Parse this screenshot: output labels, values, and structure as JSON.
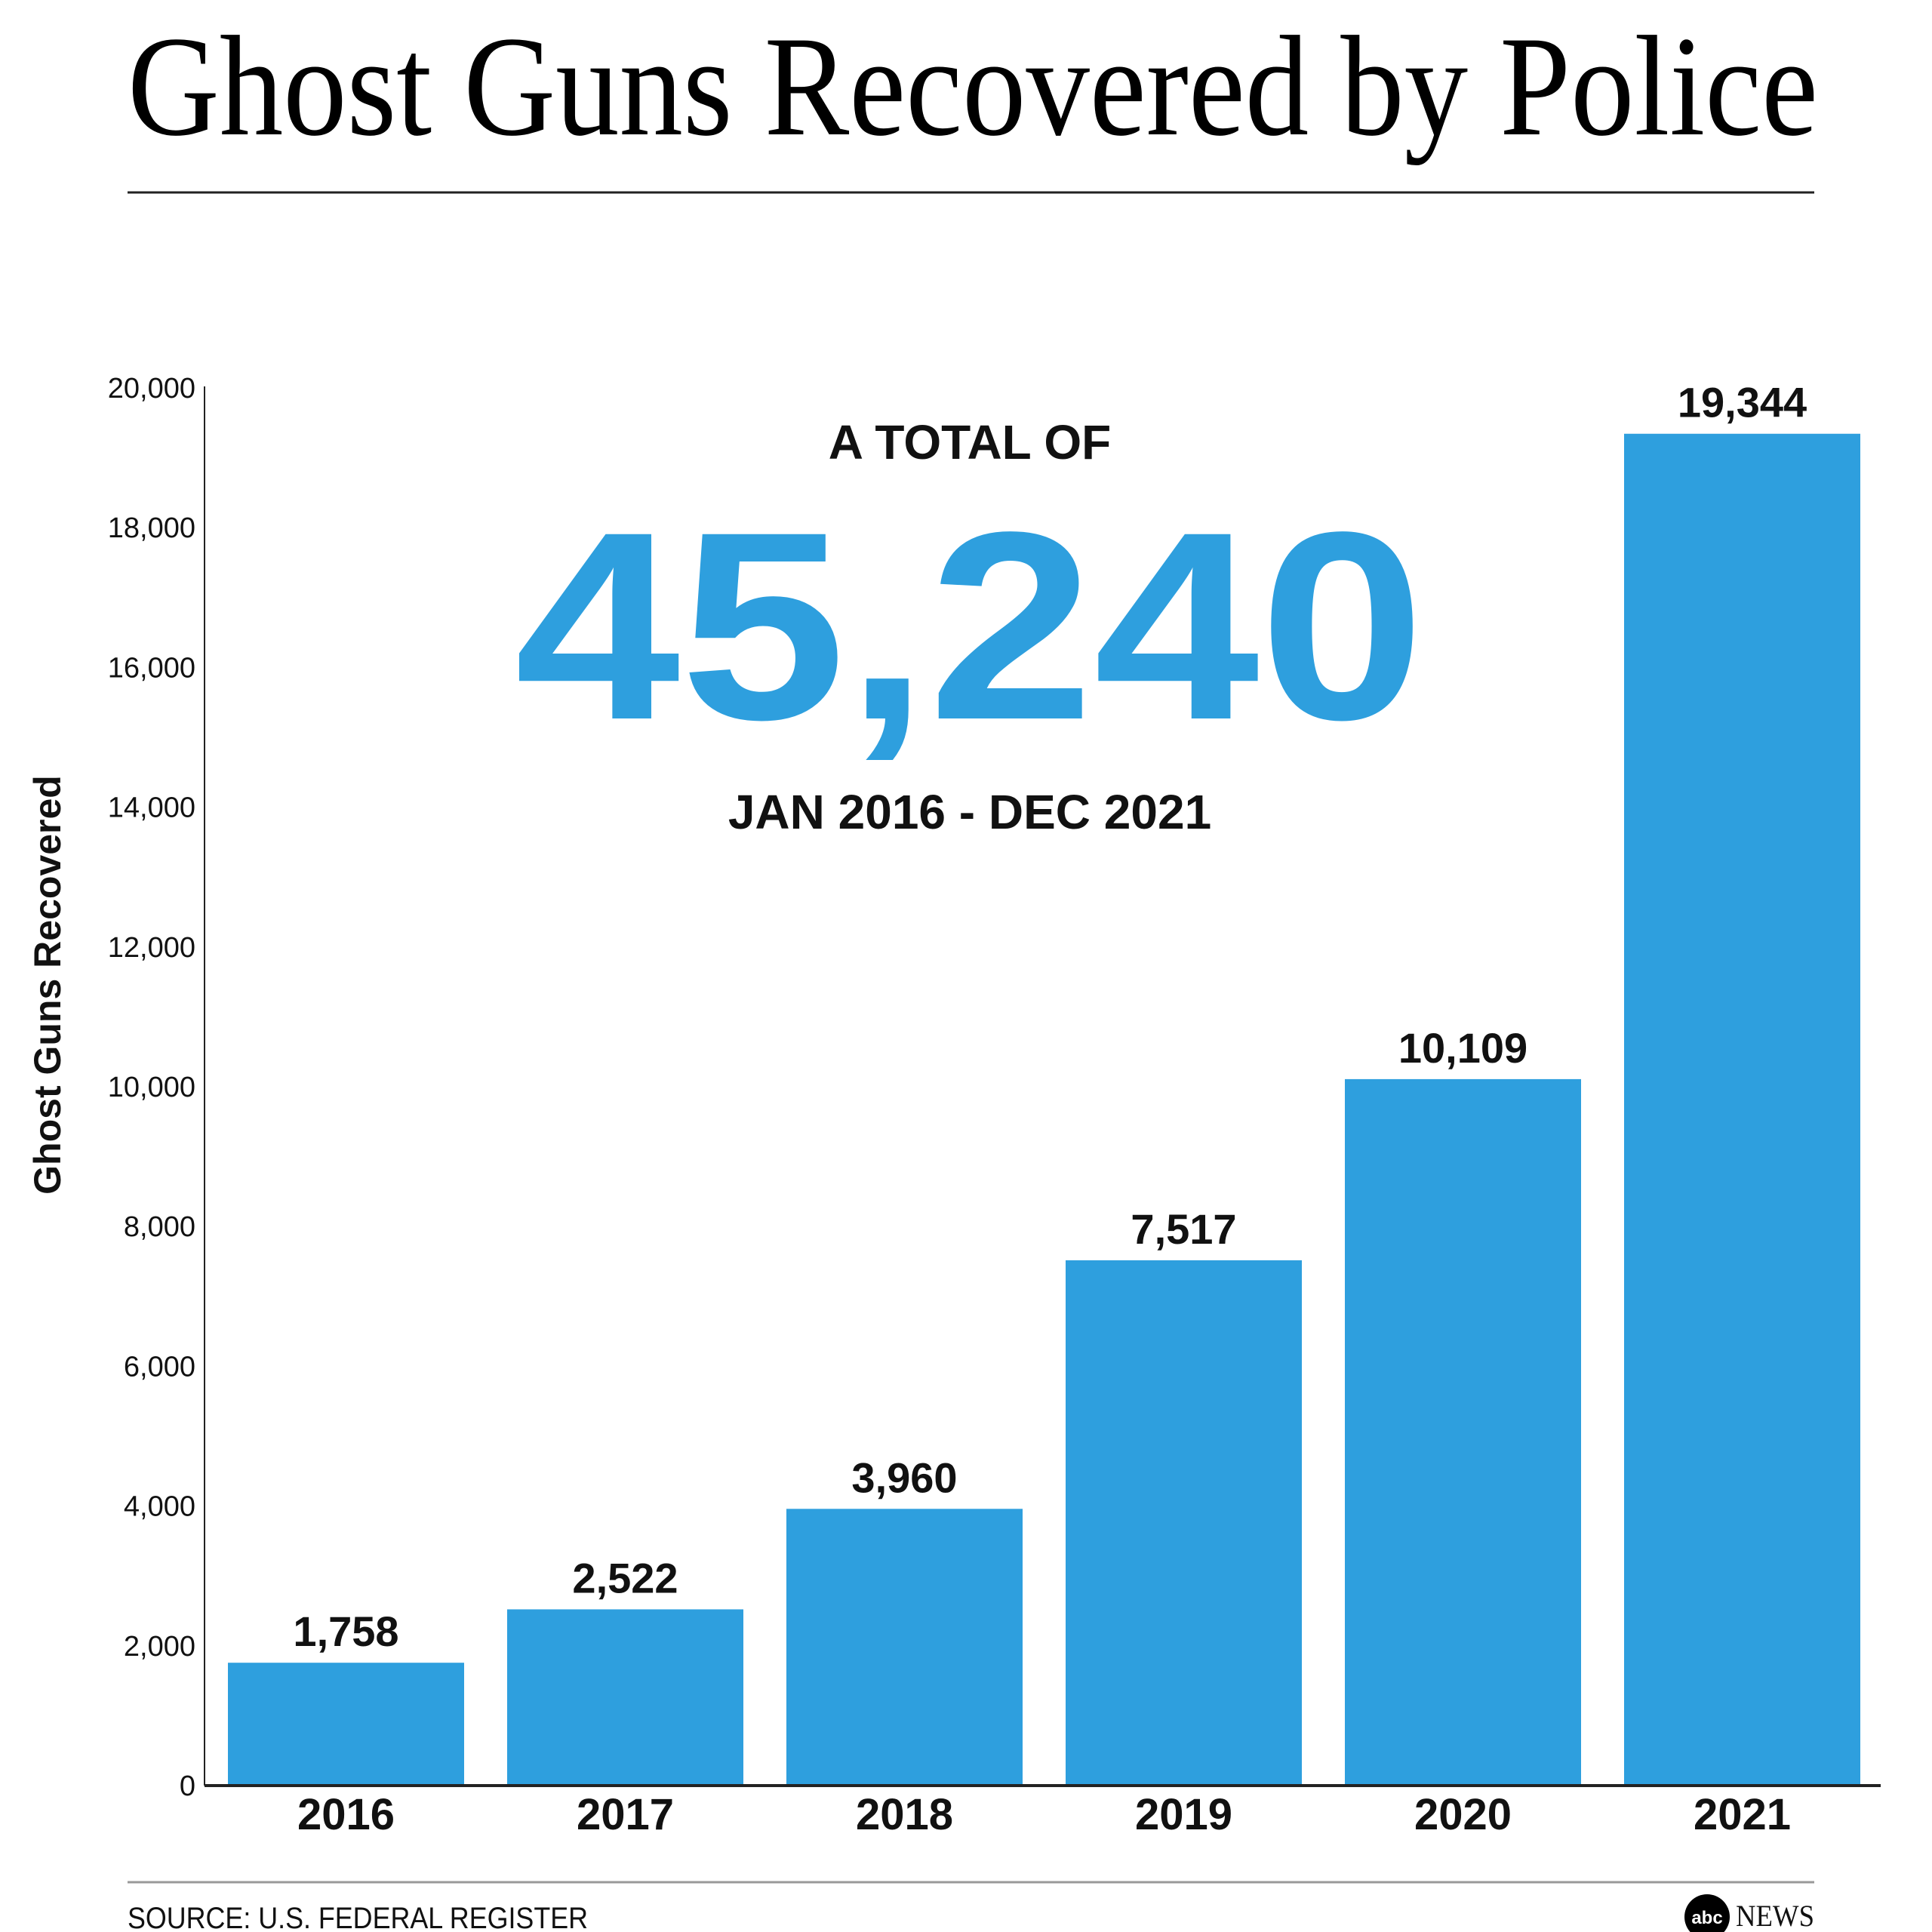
{
  "colors": {
    "bar": "#2E9FDE",
    "total": "#2E9FDE",
    "text": "#111111"
  },
  "annotation": {
    "lead": "A TOTAL OF",
    "total": "45,240",
    "period": "JAN 2016 - DEC 2021"
  },
  "footer": {
    "source": "SOURCE: U.S. FEDERAL REGISTER",
    "logo_abc": "abc",
    "logo_news": "NEWS"
  },
  "chart_data": {
    "type": "bar",
    "title": "Ghost Guns Recovered by Police",
    "xlabel": "",
    "ylabel": "Ghost Guns Recovered",
    "categories": [
      "2016",
      "2017",
      "2018",
      "2019",
      "2020",
      "2021"
    ],
    "values": [
      1758,
      2522,
      3960,
      7517,
      10109,
      19344
    ],
    "value_labels": [
      "1,758",
      "2,522",
      "3,960",
      "7,517",
      "10,109",
      "19,344"
    ],
    "ylim": [
      0,
      20000
    ],
    "yticks": [
      0,
      2000,
      4000,
      6000,
      8000,
      10000,
      12000,
      14000,
      16000,
      18000,
      20000
    ],
    "ytick_labels": [
      "0",
      "2,000",
      "4,000",
      "6,000",
      "8,000",
      "10,000",
      "12,000",
      "14,000",
      "16,000",
      "18,000",
      "20,000"
    ],
    "grid": false,
    "legend": "none"
  }
}
